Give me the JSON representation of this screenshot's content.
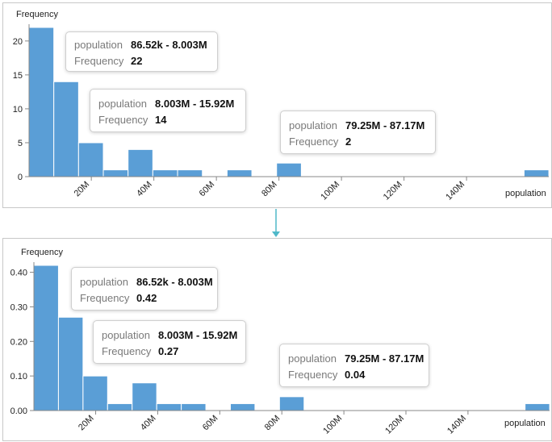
{
  "colors": {
    "bar": "#5a9ed6",
    "bar_stroke": "#ffffff",
    "axis": "#888888",
    "arrow": "#4fb8c9"
  },
  "top_chart": {
    "ylabel": "Frequency",
    "xlabel": "population",
    "tooltip_key_population": "population",
    "tooltip_key_frequency": "Frequency",
    "tooltips": [
      {
        "range": "86.52k - 8.003M",
        "value": "22"
      },
      {
        "range": "8.003M - 15.92M",
        "value": "14"
      },
      {
        "range": "79.25M - 87.17M",
        "value": "2"
      }
    ]
  },
  "bottom_chart": {
    "ylabel": "Frequency",
    "xlabel": "population",
    "tooltip_key_population": "population",
    "tooltip_key_frequency": "Frequency",
    "tooltips": [
      {
        "range": "86.52k - 8.003M",
        "value": "0.42"
      },
      {
        "range": "8.003M - 15.92M",
        "value": "0.27"
      },
      {
        "range": "79.25M - 87.17M",
        "value": "0.04"
      }
    ]
  },
  "chart_data": [
    {
      "type": "bar",
      "ylabel": "Frequency",
      "xlabel": "population",
      "x_bins_start_M": [
        0.08652,
        8.003,
        15.92,
        23.84,
        31.75,
        39.67,
        47.59,
        55.5,
        63.42,
        71.34,
        79.25,
        87.17,
        95.09,
        103.0,
        110.9,
        118.8,
        126.8,
        134.7,
        142.6,
        150.5,
        158.4
      ],
      "x_bin_width_M": 7.917,
      "values": [
        22,
        14,
        5,
        1,
        4,
        1,
        1,
        0,
        1,
        0,
        2,
        0,
        0,
        0,
        0,
        0,
        0,
        0,
        0,
        0,
        1
      ],
      "xticks": [
        "20M",
        "40M",
        "60M",
        "80M",
        "100M",
        "120M",
        "140M"
      ],
      "xtick_values_M": [
        20,
        40,
        60,
        80,
        100,
        120,
        140
      ],
      "yticks": [
        "0",
        "5",
        "10",
        "15",
        "20"
      ],
      "ytick_values": [
        0,
        5,
        10,
        15,
        20
      ],
      "ylim": [
        0,
        22
      ],
      "xlim_M": [
        0.08652,
        166.3
      ]
    },
    {
      "type": "bar",
      "ylabel": "Frequency",
      "xlabel": "population",
      "x_bins_start_M": [
        0.08652,
        8.003,
        15.92,
        23.84,
        31.75,
        39.67,
        47.59,
        55.5,
        63.42,
        71.34,
        79.25,
        87.17,
        95.09,
        103.0,
        110.9,
        118.8,
        126.8,
        134.7,
        142.6,
        150.5,
        158.4
      ],
      "x_bin_width_M": 7.917,
      "values": [
        0.42,
        0.27,
        0.1,
        0.02,
        0.08,
        0.02,
        0.02,
        0,
        0.02,
        0,
        0.04,
        0,
        0,
        0,
        0,
        0,
        0,
        0,
        0,
        0,
        0.02
      ],
      "xticks": [
        "20M",
        "40M",
        "60M",
        "80M",
        "100M",
        "120M",
        "140M"
      ],
      "xtick_values_M": [
        20,
        40,
        60,
        80,
        100,
        120,
        140
      ],
      "yticks": [
        "0.00",
        "0.10",
        "0.20",
        "0.30",
        "0.40"
      ],
      "ytick_values": [
        0,
        0.1,
        0.2,
        0.3,
        0.4
      ],
      "ylim": [
        0,
        0.42
      ],
      "xlim_M": [
        0.08652,
        166.3
      ]
    }
  ]
}
